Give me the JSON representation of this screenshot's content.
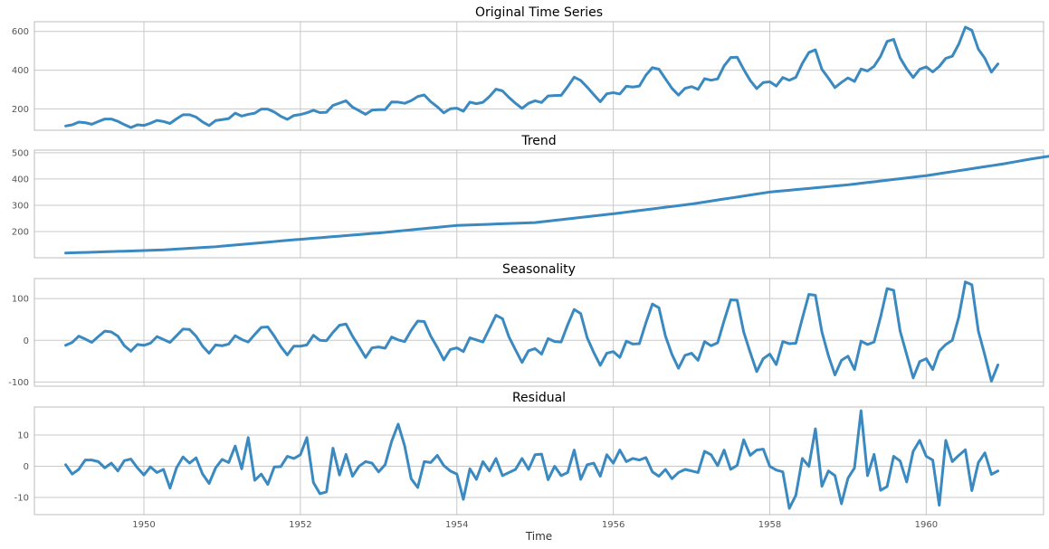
{
  "chart_data": {
    "type": "line",
    "xlabel": "Time",
    "x_start": 1949.0,
    "x_step": 0.08333333,
    "xlim": [
      1948.6,
      1961.5
    ],
    "xticks": [
      1950,
      1952,
      1954,
      1956,
      1958,
      1960
    ],
    "line_color": "#3a89c0",
    "grid": true,
    "panels": [
      {
        "title": "Original Time Series",
        "ylim": [
          90,
          650
        ],
        "yticks": [
          200,
          400,
          600
        ],
        "values": [
          112,
          118,
          132,
          129,
          121,
          135,
          148,
          148,
          136,
          119,
          104,
          118,
          115,
          126,
          141,
          135,
          125,
          149,
          170,
          170,
          158,
          133,
          114,
          140,
          145,
          150,
          178,
          163,
          172,
          178,
          199,
          199,
          184,
          162,
          146,
          166,
          171,
          180,
          193,
          181,
          183,
          218,
          230,
          242,
          209,
          191,
          172,
          194,
          196,
          196,
          236,
          235,
          229,
          243,
          264,
          272,
          237,
          211,
          180,
          201,
          204,
          188,
          235,
          227,
          234,
          264,
          302,
          293,
          259,
          229,
          203,
          229,
          242,
          233,
          267,
          269,
          270,
          315,
          364,
          347,
          312,
          274,
          237,
          278,
          284,
          277,
          317,
          313,
          318,
          374,
          413,
          405,
          355,
          306,
          271,
          306,
          315,
          301,
          356,
          348,
          355,
          422,
          465,
          467,
          404,
          347,
          305,
          336,
          340,
          318,
          362,
          348,
          363,
          435,
          491,
          505,
          404,
          359,
          310,
          337,
          360,
          342,
          406,
          396,
          420,
          472,
          548,
          559,
          463,
          407,
          362,
          405,
          417,
          391,
          419,
          461,
          472,
          535,
          622,
          606,
          508,
          461,
          390,
          432
        ]
      },
      {
        "title": "Trend",
        "ylim": [
          100,
          510
        ],
        "yticks": [
          200,
          300,
          400,
          500
        ],
        "values": [
          118,
          118.8,
          119.6,
          120.4,
          121.2,
          122,
          122.8,
          123.6,
          124.4,
          125.2,
          126,
          126.8,
          127.6,
          128.4,
          129.2,
          130,
          131.5,
          133,
          134.5,
          136,
          137.5,
          139,
          140.5,
          142,
          144.2,
          146.4,
          148.6,
          150.8,
          153,
          155.2,
          157.4,
          159.6,
          161.8,
          164,
          166.2,
          168.4,
          170.4,
          172.4,
          174.4,
          176.4,
          178.4,
          180.4,
          182.4,
          184.4,
          186.4,
          188.4,
          190.4,
          192.4,
          194.4,
          196.8,
          199.2,
          201.6,
          204,
          206.4,
          208.8,
          211.2,
          213.6,
          216,
          218.4,
          220.8,
          223.2,
          224.1,
          225,
          225.9,
          226.8,
          227.7,
          228.6,
          229.5,
          230.4,
          231.3,
          232.2,
          233.1,
          234,
          236.8,
          239.6,
          242.4,
          245.2,
          248,
          250.8,
          253.6,
          256.4,
          259.2,
          262,
          264.8,
          267.6,
          270.7,
          273.8,
          276.9,
          280,
          283.1,
          286.2,
          289.3,
          292.4,
          295.5,
          298.6,
          301.7,
          304.8,
          308.6,
          312.4,
          316.2,
          320,
          323.8,
          327.6,
          331.4,
          335.2,
          339,
          342.8,
          346.6,
          350.4,
          352.7,
          355,
          357.3,
          359.6,
          361.9,
          364.2,
          366.5,
          368.8,
          371.1,
          373.4,
          375.7,
          378,
          380.9,
          383.8,
          386.7,
          389.6,
          392.5,
          395.4,
          398.3,
          401.2,
          404.1,
          407,
          409.9,
          412.8,
          416.6,
          420.4,
          424.2,
          428,
          431.8,
          435.6,
          439.4,
          443.2,
          447,
          450.8,
          454.6,
          458.4,
          462.8,
          467.2,
          471.6,
          476,
          479.8,
          483.6,
          487.4,
          491.2,
          495,
          498.8,
          502.6
        ]
      },
      {
        "title": "Seasonality",
        "ylim": [
          -110,
          148
        ],
        "yticks": [
          -100,
          0,
          100
        ],
        "values": [
          -12,
          -5,
          10,
          3,
          -5,
          9,
          22,
          20,
          10,
          -13,
          -26,
          -10,
          -12,
          -7,
          9,
          2,
          -5,
          11,
          27,
          26,
          10,
          -14,
          -31,
          -11,
          -13,
          -9,
          11,
          2,
          -4,
          14,
          31,
          32,
          10,
          -15,
          -35,
          -14,
          -14,
          -11,
          12,
          0,
          -1,
          19,
          36,
          39,
          10,
          -15,
          -41,
          -18,
          -16,
          -19,
          8,
          1,
          -3,
          24,
          46,
          45,
          10,
          -17,
          -47,
          -22,
          -18,
          -27,
          6,
          1,
          -4,
          28,
          60,
          52,
          8,
          -23,
          -53,
          -25,
          -20,
          -33,
          4,
          -3,
          -4,
          37,
          74,
          64,
          6,
          -29,
          -60,
          -31,
          -27,
          -41,
          -2,
          -9,
          -8,
          42,
          87,
          78,
          10,
          -34,
          -67,
          -36,
          -31,
          -48,
          -3,
          -13,
          -6,
          47,
          97,
          96,
          20,
          -29,
          -75,
          -44,
          -33,
          -58,
          -3,
          -8,
          -7,
          53,
          110,
          108,
          20,
          -37,
          -83,
          -48,
          -38,
          -70,
          -2,
          -10,
          -4,
          56,
          124,
          120,
          22,
          -34,
          -90,
          -51,
          -44,
          -70,
          -26,
          -10,
          0,
          56,
          140,
          133,
          22,
          -36,
          -98,
          -59
        ]
      },
      {
        "title": "Residual",
        "ylim": [
          -15.5,
          19
        ],
        "yticks": [
          -10,
          0,
          10
        ],
        "values": [
          0.5,
          -2.5,
          -1,
          2,
          2,
          1.5,
          -0.5,
          1,
          -1.5,
          1.8,
          2.3,
          -0.5,
          -2.8,
          -0.2,
          -2,
          -1,
          -7,
          -0.5,
          3,
          1,
          2.7,
          -2.5,
          -5.5,
          -0.5,
          2.2,
          1.2,
          6.5,
          -0.8,
          9.2,
          -4.5,
          -2.5,
          -5.8,
          -0.2,
          -0.1,
          3.2,
          2.5,
          3.7,
          9.2,
          -5.2,
          -8.8,
          -8.2,
          5.8,
          -2.8,
          3.8,
          -3.2,
          0,
          1.5,
          1,
          -1.8,
          0.5,
          8,
          13.5,
          6.5,
          -4,
          -6.8,
          1.5,
          1.2,
          3.5,
          0.2,
          -1.5,
          -2.5,
          -10.6,
          -0.8,
          -4.2,
          1.5,
          -1.5,
          2.5,
          -3,
          -2,
          -1,
          2.5,
          -1,
          3.7,
          3.9,
          -4.3,
          0,
          -3,
          -2,
          5.2,
          -4.2,
          0.5,
          1,
          -3.2,
          3.7,
          1,
          5.2,
          1.5,
          2.5,
          2,
          2.8,
          -1.8,
          -3.2,
          -1,
          -4,
          -2,
          -1,
          -1.5,
          -2,
          4.8,
          3.7,
          0.2,
          5.2,
          -1,
          0.3,
          8.5,
          3.5,
          5.2,
          5.5,
          0,
          -1.2,
          -1.8,
          -13.5,
          -9.3,
          2.5,
          0,
          12,
          -6.4,
          -1.5,
          -3,
          -12,
          -3.8,
          -0.5,
          17.8,
          -3,
          3.8,
          -7.7,
          -6.5,
          3.2,
          1.7,
          -5,
          4.8,
          8.3,
          3.2,
          2,
          -12.5,
          8.3,
          1.5,
          3.5,
          5.3,
          -7.8,
          1.2,
          4.3,
          -2.6,
          -1.5
        ]
      }
    ]
  }
}
